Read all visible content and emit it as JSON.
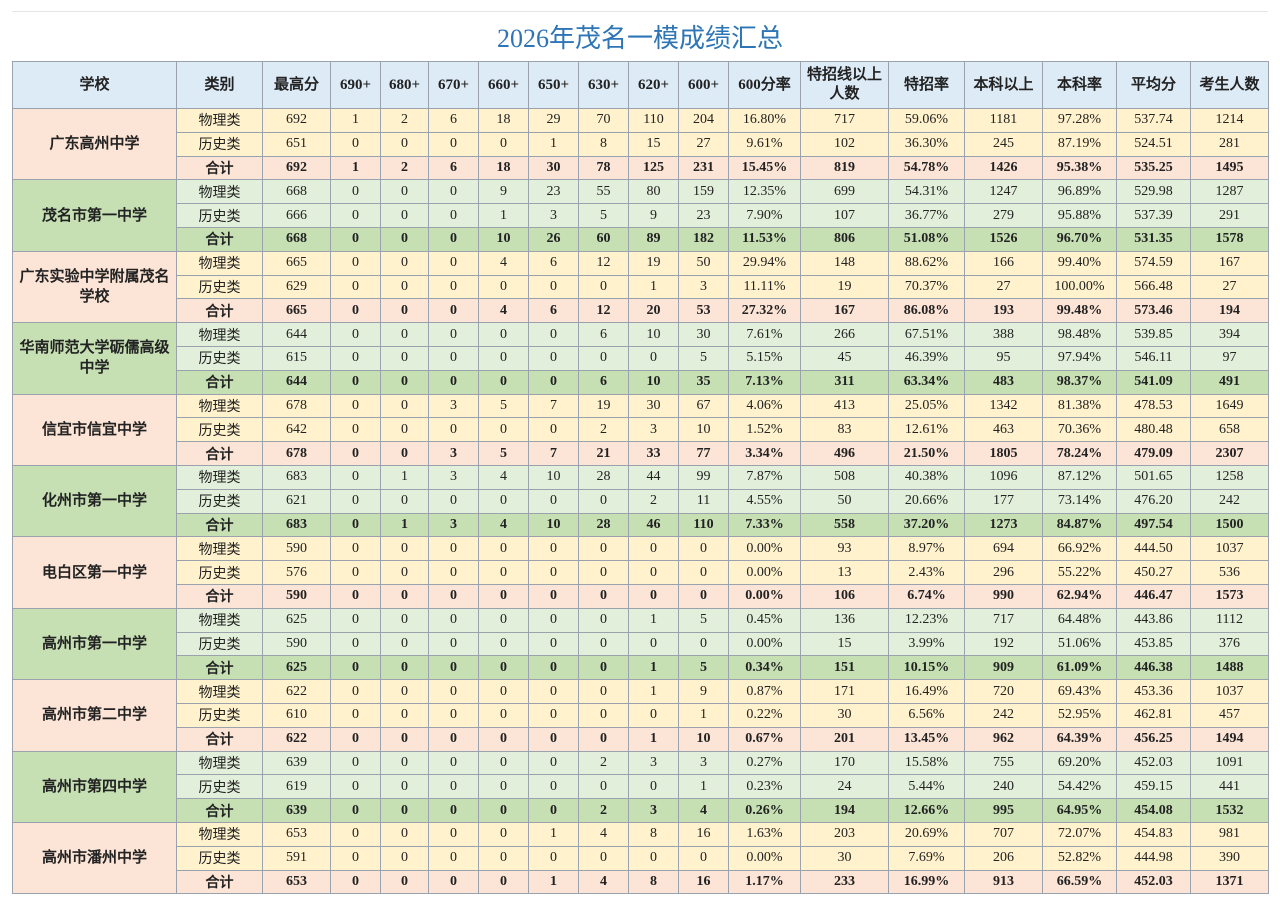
{
  "title": "2026年茂名一模成绩汇总",
  "table": {
    "header": [
      "学校",
      "类别",
      "最高分",
      "690+",
      "680+",
      "670+",
      "660+",
      "650+",
      "630+",
      "620+",
      "600+",
      "600分率",
      "特招线以上人数",
      "特招率",
      "本科以上",
      "本科率",
      "平均分",
      "考生人数"
    ],
    "groups": [
      {
        "school": "广东高州中学",
        "rows": [
          [
            "物理类",
            "692",
            "1",
            "2",
            "6",
            "18",
            "29",
            "70",
            "110",
            "204",
            "16.80%",
            "717",
            "59.06%",
            "1181",
            "97.28%",
            "537.74",
            "1214"
          ],
          [
            "历史类",
            "651",
            "0",
            "0",
            "0",
            "0",
            "1",
            "8",
            "15",
            "27",
            "9.61%",
            "102",
            "36.30%",
            "245",
            "87.19%",
            "524.51",
            "281"
          ],
          [
            "合计",
            "692",
            "1",
            "2",
            "6",
            "18",
            "30",
            "78",
            "125",
            "231",
            "15.45%",
            "819",
            "54.78%",
            "1426",
            "95.38%",
            "535.25",
            "1495"
          ]
        ]
      },
      {
        "school": "茂名市第一中学",
        "rows": [
          [
            "物理类",
            "668",
            "0",
            "0",
            "0",
            "9",
            "23",
            "55",
            "80",
            "159",
            "12.35%",
            "699",
            "54.31%",
            "1247",
            "96.89%",
            "529.98",
            "1287"
          ],
          [
            "历史类",
            "666",
            "0",
            "0",
            "0",
            "1",
            "3",
            "5",
            "9",
            "23",
            "7.90%",
            "107",
            "36.77%",
            "279",
            "95.88%",
            "537.39",
            "291"
          ],
          [
            "合计",
            "668",
            "0",
            "0",
            "0",
            "10",
            "26",
            "60",
            "89",
            "182",
            "11.53%",
            "806",
            "51.08%",
            "1526",
            "96.70%",
            "531.35",
            "1578"
          ]
        ]
      },
      {
        "school": "广东实验中学附属茂名学校",
        "rows": [
          [
            "物理类",
            "665",
            "0",
            "0",
            "0",
            "4",
            "6",
            "12",
            "19",
            "50",
            "29.94%",
            "148",
            "88.62%",
            "166",
            "99.40%",
            "574.59",
            "167"
          ],
          [
            "历史类",
            "629",
            "0",
            "0",
            "0",
            "0",
            "0",
            "0",
            "1",
            "3",
            "11.11%",
            "19",
            "70.37%",
            "27",
            "100.00%",
            "566.48",
            "27"
          ],
          [
            "合计",
            "665",
            "0",
            "0",
            "0",
            "4",
            "6",
            "12",
            "20",
            "53",
            "27.32%",
            "167",
            "86.08%",
            "193",
            "99.48%",
            "573.46",
            "194"
          ]
        ]
      },
      {
        "school": "华南师范大学砺儒高级中学",
        "rows": [
          [
            "物理类",
            "644",
            "0",
            "0",
            "0",
            "0",
            "0",
            "6",
            "10",
            "30",
            "7.61%",
            "266",
            "67.51%",
            "388",
            "98.48%",
            "539.85",
            "394"
          ],
          [
            "历史类",
            "615",
            "0",
            "0",
            "0",
            "0",
            "0",
            "0",
            "0",
            "5",
            "5.15%",
            "45",
            "46.39%",
            "95",
            "97.94%",
            "546.11",
            "97"
          ],
          [
            "合计",
            "644",
            "0",
            "0",
            "0",
            "0",
            "0",
            "6",
            "10",
            "35",
            "7.13%",
            "311",
            "63.34%",
            "483",
            "98.37%",
            "541.09",
            "491"
          ]
        ]
      },
      {
        "school": "信宜市信宜中学",
        "rows": [
          [
            "物理类",
            "678",
            "0",
            "0",
            "3",
            "5",
            "7",
            "19",
            "30",
            "67",
            "4.06%",
            "413",
            "25.05%",
            "1342",
            "81.38%",
            "478.53",
            "1649"
          ],
          [
            "历史类",
            "642",
            "0",
            "0",
            "0",
            "0",
            "0",
            "2",
            "3",
            "10",
            "1.52%",
            "83",
            "12.61%",
            "463",
            "70.36%",
            "480.48",
            "658"
          ],
          [
            "合计",
            "678",
            "0",
            "0",
            "3",
            "5",
            "7",
            "21",
            "33",
            "77",
            "3.34%",
            "496",
            "21.50%",
            "1805",
            "78.24%",
            "479.09",
            "2307"
          ]
        ]
      },
      {
        "school": "化州市第一中学",
        "rows": [
          [
            "物理类",
            "683",
            "0",
            "1",
            "3",
            "4",
            "10",
            "28",
            "44",
            "99",
            "7.87%",
            "508",
            "40.38%",
            "1096",
            "87.12%",
            "501.65",
            "1258"
          ],
          [
            "历史类",
            "621",
            "0",
            "0",
            "0",
            "0",
            "0",
            "0",
            "2",
            "11",
            "4.55%",
            "50",
            "20.66%",
            "177",
            "73.14%",
            "476.20",
            "242"
          ],
          [
            "合计",
            "683",
            "0",
            "1",
            "3",
            "4",
            "10",
            "28",
            "46",
            "110",
            "7.33%",
            "558",
            "37.20%",
            "1273",
            "84.87%",
            "497.54",
            "1500"
          ]
        ]
      },
      {
        "school": "电白区第一中学",
        "rows": [
          [
            "物理类",
            "590",
            "0",
            "0",
            "0",
            "0",
            "0",
            "0",
            "0",
            "0",
            "0.00%",
            "93",
            "8.97%",
            "694",
            "66.92%",
            "444.50",
            "1037"
          ],
          [
            "历史类",
            "576",
            "0",
            "0",
            "0",
            "0",
            "0",
            "0",
            "0",
            "0",
            "0.00%",
            "13",
            "2.43%",
            "296",
            "55.22%",
            "450.27",
            "536"
          ],
          [
            "合计",
            "590",
            "0",
            "0",
            "0",
            "0",
            "0",
            "0",
            "0",
            "0",
            "0.00%",
            "106",
            "6.74%",
            "990",
            "62.94%",
            "446.47",
            "1573"
          ]
        ]
      },
      {
        "school": "高州市第一中学",
        "rows": [
          [
            "物理类",
            "625",
            "0",
            "0",
            "0",
            "0",
            "0",
            "0",
            "1",
            "5",
            "0.45%",
            "136",
            "12.23%",
            "717",
            "64.48%",
            "443.86",
            "1112"
          ],
          [
            "历史类",
            "590",
            "0",
            "0",
            "0",
            "0",
            "0",
            "0",
            "0",
            "0",
            "0.00%",
            "15",
            "3.99%",
            "192",
            "51.06%",
            "453.85",
            "376"
          ],
          [
            "合计",
            "625",
            "0",
            "0",
            "0",
            "0",
            "0",
            "0",
            "1",
            "5",
            "0.34%",
            "151",
            "10.15%",
            "909",
            "61.09%",
            "446.38",
            "1488"
          ]
        ]
      },
      {
        "school": "高州市第二中学",
        "rows": [
          [
            "物理类",
            "622",
            "0",
            "0",
            "0",
            "0",
            "0",
            "0",
            "1",
            "9",
            "0.87%",
            "171",
            "16.49%",
            "720",
            "69.43%",
            "453.36",
            "1037"
          ],
          [
            "历史类",
            "610",
            "0",
            "0",
            "0",
            "0",
            "0",
            "0",
            "0",
            "1",
            "0.22%",
            "30",
            "6.56%",
            "242",
            "52.95%",
            "462.81",
            "457"
          ],
          [
            "合计",
            "622",
            "0",
            "0",
            "0",
            "0",
            "0",
            "0",
            "1",
            "10",
            "0.67%",
            "201",
            "13.45%",
            "962",
            "64.39%",
            "456.25",
            "1494"
          ]
        ]
      },
      {
        "school": "高州市第四中学",
        "rows": [
          [
            "物理类",
            "639",
            "0",
            "0",
            "0",
            "0",
            "0",
            "2",
            "3",
            "3",
            "0.27%",
            "170",
            "15.58%",
            "755",
            "69.20%",
            "452.03",
            "1091"
          ],
          [
            "历史类",
            "619",
            "0",
            "0",
            "0",
            "0",
            "0",
            "0",
            "0",
            "1",
            "0.23%",
            "24",
            "5.44%",
            "240",
            "54.42%",
            "459.15",
            "441"
          ],
          [
            "合计",
            "639",
            "0",
            "0",
            "0",
            "0",
            "0",
            "2",
            "3",
            "4",
            "0.26%",
            "194",
            "12.66%",
            "995",
            "64.95%",
            "454.08",
            "1532"
          ]
        ]
      },
      {
        "school": "高州市潘州中学",
        "rows": [
          [
            "物理类",
            "653",
            "0",
            "0",
            "0",
            "0",
            "1",
            "4",
            "8",
            "16",
            "1.63%",
            "203",
            "20.69%",
            "707",
            "72.07%",
            "454.83",
            "981"
          ],
          [
            "历史类",
            "591",
            "0",
            "0",
            "0",
            "0",
            "0",
            "0",
            "0",
            "0",
            "0.00%",
            "30",
            "7.69%",
            "206",
            "52.82%",
            "444.98",
            "390"
          ],
          [
            "合计",
            "653",
            "0",
            "0",
            "0",
            "0",
            "1",
            "4",
            "8",
            "16",
            "1.17%",
            "233",
            "16.99%",
            "913",
            "66.59%",
            "452.03",
            "1371"
          ]
        ]
      }
    ]
  }
}
